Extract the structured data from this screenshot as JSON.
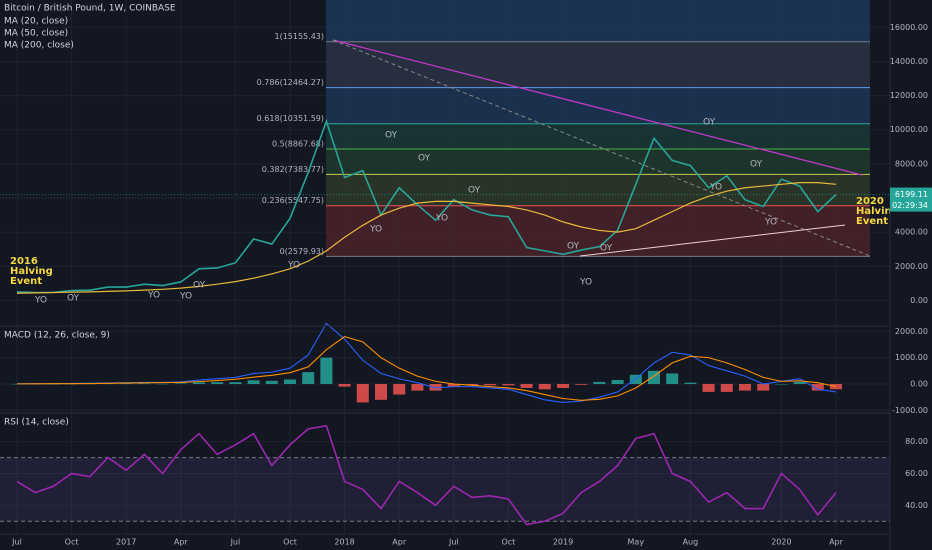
{
  "header": {
    "title": "Bitcoin / British Pound, 1W, COINBASE",
    "indicators": [
      "MA (20, close)",
      "MA (50, close)",
      "MA (200, close)"
    ],
    "countdown": "02:29:34"
  },
  "halvings": [
    [
      "2016",
      "Halving",
      "Event"
    ],
    [
      "2020",
      "Halving",
      "Event"
    ]
  ],
  "annotations": [
    {
      "text": "OY",
      "color": "#e07a5f"
    },
    {
      "text": "OY",
      "color": "#e07a5f"
    },
    {
      "text": "OY",
      "color": "#e07a5f"
    },
    {
      "text": "YO",
      "color": "#3d6fb6"
    },
    {
      "text": "YO",
      "color": "#3d6fb6"
    },
    {
      "text": "OY",
      "color": "#e07a5f"
    },
    {
      "text": "OY",
      "color": "#e07a5f"
    },
    {
      "text": "YO",
      "color": "#3d6fb6"
    },
    {
      "text": "YO",
      "color": "#3d6fb6"
    },
    {
      "text": "OY",
      "color": "#e07a5f"
    },
    {
      "text": "OY",
      "color": "#e07a5f"
    },
    {
      "text": "YO",
      "color": "#3d6fb6"
    },
    {
      "text": "YO",
      "color": "#3d6fb6"
    },
    {
      "text": "OY",
      "color": "#e07a5f"
    },
    {
      "text": "YO",
      "color": "#3d6fb6"
    },
    {
      "text": "YO",
      "color": "#3d6fb6"
    },
    {
      "text": "YO",
      "color": "#3d6fb6"
    },
    {
      "text": "OY",
      "color": "#e07a5f"
    }
  ],
  "chart_data": [
    {
      "type": "line",
      "categories": [
        "Jul",
        null,
        null,
        "Oct",
        null,
        null,
        "2017",
        null,
        null,
        "Apr",
        null,
        null,
        "Jul",
        null,
        null,
        "Oct",
        null,
        null,
        "2018",
        null,
        null,
        "Apr",
        null,
        null,
        "Jul",
        null,
        null,
        "Oct",
        null,
        null,
        "2019",
        null,
        null,
        null,
        "May",
        null,
        null,
        "Aug",
        null,
        null,
        null,
        null,
        "2020",
        null,
        null,
        "Apr"
      ],
      "series": [
        {
          "name": "close",
          "color": "#26a69a",
          "values": [
            500,
            460,
            470,
            575,
            600,
            780,
            780,
            950,
            870,
            1080,
            1850,
            1900,
            2200,
            3600,
            3300,
            4800,
            7500,
            10500,
            7200,
            7600,
            5000,
            6600,
            5600,
            4700,
            5900,
            5300,
            5000,
            4900,
            3100,
            2900,
            2700,
            2950,
            3150,
            4100,
            6800,
            9500,
            8200,
            7900,
            6600,
            7300,
            5900,
            5500,
            7100,
            6700,
            5200,
            6199.11
          ]
        },
        {
          "name": "MA (50, close)",
          "color": "#e9b83a",
          "values": [
            420,
            440,
            460,
            480,
            500,
            530,
            560,
            600,
            650,
            720,
            820,
            950,
            1100,
            1300,
            1550,
            1850,
            2300,
            2900,
            3700,
            4400,
            5000,
            5400,
            5700,
            5800,
            5800,
            5700,
            5600,
            5500,
            5300,
            5000,
            4600,
            4300,
            4100,
            4000,
            4200,
            4700,
            5200,
            5700,
            6100,
            6400,
            6600,
            6700,
            6800,
            6900,
            6900,
            6800
          ]
        }
      ],
      "fib_levels": [
        {
          "label": "1(15155.43)",
          "value": 15155.43,
          "color": "#787b86"
        },
        {
          "label": "0.786(12464.27)",
          "value": 12464.27,
          "color": "#5b9cf6"
        },
        {
          "label": "0.618(10351.59)",
          "value": 10351.59,
          "color": "#26a69a"
        },
        {
          "label": "0.5(8867.68)",
          "value": 8867.68,
          "color": "#4caf50"
        },
        {
          "label": "0.382(7383.77)",
          "value": 7383.77,
          "color": "#c5c84a"
        },
        {
          "label": "0.236(5547.75)",
          "value": 5547.75,
          "color": "#ef5350"
        },
        {
          "label": "0(2579.93)",
          "value": 2579.93,
          "color": "#787b86"
        }
      ],
      "ylim": [
        -1500,
        17600
      ],
      "yticks": [
        {
          "value": 0,
          "label": "0.00"
        },
        {
          "value": 2000,
          "label": "2000.00"
        },
        {
          "value": 4000,
          "label": "4000.00"
        },
        {
          "value": 6000,
          "label": "6000.00"
        },
        {
          "value": 8000,
          "label": "8000.00"
        },
        {
          "value": 10000,
          "label": "10000.00"
        },
        {
          "value": 12000,
          "label": "12000.00"
        },
        {
          "value": 14000,
          "label": "14000.00"
        },
        {
          "value": 16000,
          "label": "16000.00"
        }
      ],
      "grid": true
    },
    {
      "type": "macd",
      "title": "MACD (12, 26, close, 9)",
      "series": [
        {
          "name": "histogram",
          "color": "#26a69a",
          "negative_color": "#ef5350",
          "values": [
            5,
            2,
            0,
            8,
            12,
            15,
            15,
            15,
            8,
            20,
            60,
            70,
            70,
            140,
            120,
            170,
            450,
            1000,
            -100,
            -700,
            -600,
            -400,
            -250,
            -250,
            -100,
            -50,
            -50,
            -50,
            -150,
            -200,
            -150,
            -30,
            80,
            150,
            350,
            500,
            400,
            50,
            -300,
            -300,
            -250,
            -250,
            0,
            80,
            -250,
            -200
          ]
        },
        {
          "name": "MACD",
          "color": "#2962ff",
          "values": [
            10,
            10,
            10,
            20,
            30,
            40,
            50,
            60,
            60,
            80,
            150,
            200,
            250,
            400,
            450,
            600,
            1100,
            2300,
            1700,
            900,
            400,
            200,
            50,
            -150,
            -100,
            -100,
            -150,
            -200,
            -400,
            -600,
            -700,
            -650,
            -500,
            -300,
            200,
            800,
            1200,
            1100,
            700,
            500,
            300,
            0,
            100,
            200,
            -200,
            -300
          ]
        },
        {
          "name": "signal",
          "color": "#ff8f00",
          "values": [
            5,
            8,
            10,
            12,
            18,
            25,
            35,
            45,
            52,
            60,
            90,
            130,
            180,
            260,
            330,
            430,
            650,
            1300,
            1800,
            1600,
            1000,
            600,
            300,
            100,
            0,
            -50,
            -100,
            -150,
            -250,
            -400,
            -550,
            -620,
            -580,
            -450,
            -150,
            300,
            800,
            1050,
            1000,
            800,
            550,
            250,
            100,
            120,
            50,
            -100
          ]
        }
      ],
      "ylim": [
        -1100,
        2200
      ],
      "yticks": [
        {
          "value": -1000,
          "label": "-1000.00"
        },
        {
          "value": 0,
          "label": "0.00"
        },
        {
          "value": 1000,
          "label": "1000.00"
        },
        {
          "value": 2000,
          "label": "2000.00"
        }
      ],
      "grid": true
    },
    {
      "type": "line",
      "title": "RSI (14, close)",
      "series": [
        {
          "name": "RSI",
          "color": "#9c27b0",
          "values": [
            55,
            48,
            52,
            60,
            58,
            70,
            62,
            72,
            60,
            75,
            85,
            72,
            78,
            85,
            65,
            78,
            88,
            90,
            55,
            50,
            38,
            55,
            48,
            40,
            52,
            45,
            46,
            44,
            28,
            30,
            35,
            48,
            55,
            65,
            82,
            85,
            60,
            55,
            42,
            48,
            38,
            38,
            60,
            50,
            34,
            48
          ]
        }
      ],
      "band": [
        30,
        70
      ],
      "ylim": [
        22,
        98
      ],
      "yticks": [
        {
          "value": 40,
          "label": "40.00"
        },
        {
          "value": 60,
          "label": "60.00"
        },
        {
          "value": 80,
          "label": "80.00"
        }
      ],
      "grid": true
    }
  ]
}
